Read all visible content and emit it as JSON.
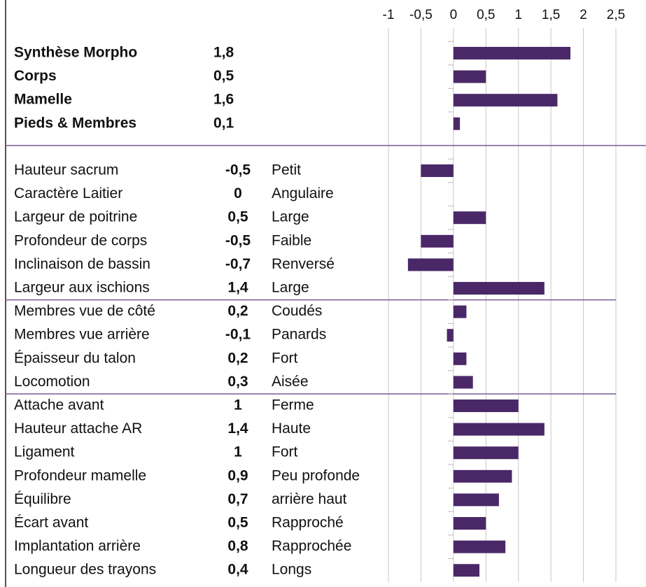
{
  "chart_data": {
    "type": "bar",
    "orientation": "horizontal",
    "color": "#4a2868",
    "grid": true,
    "xlim": [
      -1,
      2.5
    ],
    "xticks": [
      -1,
      {
        "value": -0.5,
        "label": "-0,5"
      },
      0,
      {
        "value": 0.5,
        "label": "0,5"
      },
      1,
      {
        "value": 1.5,
        "label": "1,5"
      },
      2,
      {
        "value": 2.5,
        "label": "2,5"
      }
    ],
    "groups": [
      {
        "bold": true,
        "categories": [
          "Synthèse Morpho",
          "Corps",
          "Mamelle",
          "Pieds & Membres"
        ],
        "values": [
          1.8,
          0.5,
          1.6,
          0.1
        ],
        "value_labels": [
          "1,8",
          "0,5",
          "1,6",
          "0,1"
        ]
      },
      {
        "bold": false,
        "categories": [
          "Hauteur sacrum",
          "Caractère Laitier",
          "Largeur de poitrine",
          "Profondeur de corps",
          "Inclinaison de bassin",
          "Largeur aux ischions"
        ],
        "values": [
          -0.5,
          0,
          0.5,
          -0.5,
          -0.7,
          1.4
        ],
        "value_labels": [
          "-0,5",
          "0",
          "0,5",
          "-0,5",
          "-0,7",
          "1,4"
        ],
        "descriptors": [
          "Petit",
          "Angulaire",
          "Large",
          "Faible",
          "Renversé",
          "Large"
        ]
      },
      {
        "bold": false,
        "categories": [
          "Membres vue de côté",
          "Membres vue arrière",
          "Épaisseur du talon",
          "Locomotion"
        ],
        "values": [
          0.2,
          -0.1,
          0.2,
          0.3
        ],
        "value_labels": [
          "0,2",
          "-0,1",
          "0,2",
          "0,3"
        ],
        "descriptors": [
          "Coudés",
          "Panards",
          "Fort",
          "Aisée"
        ]
      },
      {
        "bold": false,
        "categories": [
          "Attache avant",
          "Hauteur attache AR",
          "Ligament",
          "Profondeur mamelle",
          "Équilibre",
          "Écart avant",
          "Implantation arrière",
          "Longueur des trayons"
        ],
        "values": [
          1,
          1.4,
          1,
          0.9,
          0.7,
          0.5,
          0.8,
          0.4
        ],
        "value_labels": [
          "1",
          "1,4",
          "1",
          "0,9",
          "0,7",
          "0,5",
          "0,8",
          "0,4"
        ],
        "descriptors": [
          "Ferme",
          "Haute",
          "Fort",
          "Peu profonde",
          "arrière haut",
          "Rapproché",
          "Rapprochée",
          "Longs"
        ]
      }
    ]
  }
}
